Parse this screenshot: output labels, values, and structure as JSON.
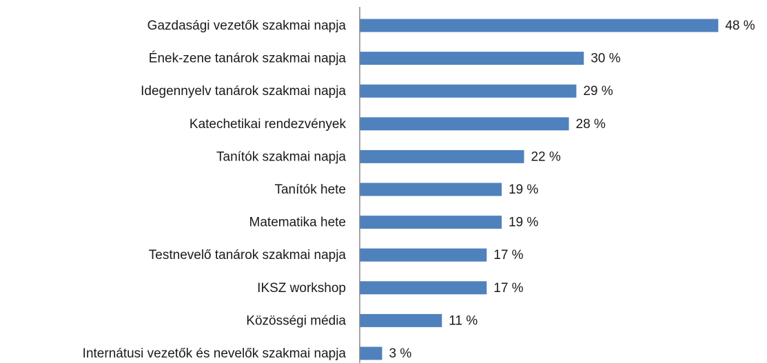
{
  "chart_data": {
    "type": "bar",
    "orientation": "horizontal",
    "categories": [
      "Gazdasági vezetők szakmai napja",
      "Ének-zene tanárok szakmai napja",
      "Idegennyelv tanárok szakmai napja",
      "Katechetikai rendezvények",
      "Tanítók szakmai napja",
      "Tanítók hete",
      "Matematika hete",
      "Testnevelő tanárok szakmai napja",
      "IKSZ workshop",
      "Közösségi média",
      "Internátusi vezetők és nevelők szakmai napja"
    ],
    "values": [
      48,
      30,
      29,
      28,
      22,
      19,
      19,
      17,
      17,
      11,
      3
    ],
    "value_labels": [
      "48 %",
      "30 %",
      "29 %",
      "28 %",
      "22 %",
      "19 %",
      "19 %",
      "17 %",
      "17 %",
      "11 %",
      "3 %"
    ],
    "color": "#4f81bd",
    "xlim": [
      0,
      50
    ]
  }
}
